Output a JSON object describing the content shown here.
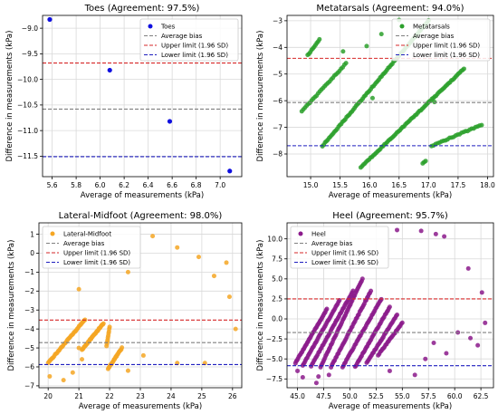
{
  "figure": {
    "xlabel": "Average of measurements (kPa)",
    "ylabel": "Difference in measurements (kPa)"
  },
  "legend_labels": {
    "bias": "Average bias",
    "upper": "Upper limit (1.96 SD)",
    "lower": "Lower limit (1.96 SD)"
  },
  "colors": {
    "bias": "#808080",
    "upper": "#d62728",
    "lower": "#1f1fbf",
    "grid": "#d9d9d9"
  },
  "chart_data": [
    {
      "type": "scatter",
      "title": "Toes (Agreement: 97.5%)",
      "series_name": "Toes",
      "color": "#1010e0",
      "xlim": [
        5.52,
        7.18
      ],
      "ylim": [
        -11.9,
        -8.75
      ],
      "xticks": [
        5.6,
        5.8,
        6.0,
        6.2,
        6.4,
        6.6,
        6.8,
        7.0
      ],
      "yticks": [
        -11.5,
        -11.0,
        -10.5,
        -10.0,
        -9.5,
        -9.0
      ],
      "xtick_labels": [
        "5.6",
        "5.8",
        "6.0",
        "6.2",
        "6.4",
        "6.6",
        "6.8",
        "7.0"
      ],
      "ytick_labels": [
        "−11.5",
        "−11.0",
        "−10.5",
        "−10.0",
        "−9.5",
        "−9.0"
      ],
      "bias": -10.58,
      "upper": -9.68,
      "lower": -11.51,
      "legend_pos": "top-right",
      "points": [
        [
          5.58,
          -8.83
        ],
        [
          6.08,
          -9.82
        ],
        [
          6.58,
          -10.82
        ],
        [
          7.08,
          -11.79
        ]
      ]
    },
    {
      "type": "scatter",
      "title": "Metatarsals (Agreement: 94.0%)",
      "series_name": "Metatarsals",
      "color": "#2ca02c",
      "xlim": [
        14.6,
        18.1
      ],
      "ylim": [
        -8.85,
        -2.8
      ],
      "xticks": [
        15.0,
        15.5,
        16.0,
        16.5,
        17.0,
        17.5,
        18.0
      ],
      "yticks": [
        -8,
        -7,
        -6,
        -5,
        -4,
        -3
      ],
      "xtick_labels": [
        "15.0",
        "15.5",
        "16.0",
        "16.5",
        "17.0",
        "17.5",
        "18.0"
      ],
      "ytick_labels": [
        "−8",
        "−7",
        "−6",
        "−5",
        "−4",
        "−3"
      ],
      "bias": -6.07,
      "upper": -4.41,
      "lower": -7.69,
      "legend_pos": "top-right",
      "clusters": [
        {
          "from": [
            14.95,
            -4.3
          ],
          "to": [
            15.15,
            -3.7
          ],
          "n": 10
        },
        {
          "from": [
            14.85,
            -6.4
          ],
          "to": [
            15.6,
            -4.6
          ],
          "n": 28
        },
        {
          "from": [
            15.2,
            -7.7
          ],
          "to": [
            17.0,
            -3.0
          ],
          "n": 80
        },
        {
          "from": [
            15.85,
            -8.5
          ],
          "to": [
            17.6,
            -4.8
          ],
          "n": 75
        },
        {
          "from": [
            17.05,
            -7.7
          ],
          "to": [
            17.9,
            -6.9
          ],
          "n": 26
        },
        {
          "from": [
            16.9,
            -8.35
          ],
          "to": [
            16.95,
            -8.25
          ],
          "n": 3
        }
      ],
      "extra_points": [
        [
          15.95,
          -3.95
        ],
        [
          16.2,
          -3.5
        ],
        [
          16.05,
          -5.9
        ],
        [
          16.5,
          -2.97
        ],
        [
          17.1,
          -6.05
        ],
        [
          15.55,
          -4.15
        ]
      ]
    },
    {
      "type": "scatter",
      "title": "Lateral-Midfoot (Agreement: 98.0%)",
      "series_name": "Lateral-Midfoot",
      "color": "#f5a623",
      "xlim": [
        19.7,
        26.3
      ],
      "ylim": [
        -7.1,
        1.6
      ],
      "xticks": [
        20,
        21,
        22,
        23,
        24,
        25,
        26
      ],
      "yticks": [
        -7,
        -6,
        -5,
        -4,
        -3,
        -2,
        -1,
        0,
        1
      ],
      "xtick_labels": [
        "20",
        "21",
        "22",
        "23",
        "24",
        "25",
        "26"
      ],
      "ytick_labels": [
        "−7",
        "−6",
        "−5",
        "−4",
        "−3",
        "−2",
        "−1",
        "0",
        "1"
      ],
      "bias": -4.72,
      "upper": -3.53,
      "lower": -5.88,
      "legend_pos": "top-left",
      "clusters": [
        {
          "from": [
            20.0,
            -5.8
          ],
          "to": [
            21.2,
            -3.5
          ],
          "n": 38
        },
        {
          "from": [
            21.1,
            -5.1
          ],
          "to": [
            21.8,
            -3.7
          ],
          "n": 34
        },
        {
          "from": [
            21.95,
            -6.1
          ],
          "to": [
            22.4,
            -5.0
          ],
          "n": 22
        },
        {
          "from": [
            21.9,
            -4.9
          ],
          "to": [
            22.0,
            -3.9
          ],
          "n": 10
        }
      ],
      "extra_points": [
        [
          20.05,
          -6.5
        ],
        [
          20.5,
          -6.7
        ],
        [
          20.8,
          -6.3
        ],
        [
          21.0,
          -5.0
        ],
        [
          21.0,
          -1.9
        ],
        [
          21.1,
          -5.6
        ],
        [
          22.6,
          -1.0
        ],
        [
          22.6,
          -6.2
        ],
        [
          23.4,
          0.9
        ],
        [
          23.1,
          -5.4
        ],
        [
          24.2,
          0.3
        ],
        [
          24.2,
          -5.8
        ],
        [
          24.9,
          -0.2
        ],
        [
          25.1,
          -5.8
        ],
        [
          25.4,
          -1.2
        ],
        [
          25.8,
          -0.5
        ],
        [
          25.9,
          -2.3
        ],
        [
          26.1,
          -4.0
        ]
      ]
    },
    {
      "type": "scatter",
      "title": "Heel (Agreement: 95.7%)",
      "series_name": "Heel",
      "color": "#8b1a8b",
      "xlim": [
        44.0,
        63.7
      ],
      "ylim": [
        -8.6,
        12.0
      ],
      "xticks": [
        45.0,
        47.5,
        50.0,
        52.5,
        55.0,
        57.5,
        60.0,
        62.5
      ],
      "yticks": [
        -7.5,
        -5.0,
        -2.5,
        0.0,
        2.5,
        5.0,
        7.5,
        10.0
      ],
      "xtick_labels": [
        "45.0",
        "47.5",
        "50.0",
        "52.5",
        "55.0",
        "57.5",
        "60.0",
        "62.5"
      ],
      "ytick_labels": [
        "−7.5",
        "−5.0",
        "−2.5",
        "0.0",
        "2.5",
        "5.0",
        "7.5",
        "10.0"
      ],
      "bias": -1.7,
      "upper": 2.5,
      "lower": -5.85,
      "legend_pos": "top-left",
      "clusters": [
        {
          "from": [
            44.8,
            -5.5
          ],
          "to": [
            47.8,
            1.2
          ],
          "n": 38
        },
        {
          "from": [
            45.5,
            -5.8
          ],
          "to": [
            49.0,
            2.3
          ],
          "n": 42
        },
        {
          "from": [
            46.3,
            -5.9
          ],
          "to": [
            50.3,
            3.5
          ],
          "n": 46
        },
        {
          "from": [
            47.2,
            -6.0
          ],
          "to": [
            51.2,
            5.0
          ],
          "n": 50
        },
        {
          "from": [
            48.2,
            -6.0
          ],
          "to": [
            52.0,
            3.5
          ],
          "n": 44
        },
        {
          "from": [
            49.3,
            -6.0
          ],
          "to": [
            53.0,
            2.5
          ],
          "n": 42
        },
        {
          "from": [
            50.5,
            -6.0
          ],
          "to": [
            53.8,
            1.5
          ],
          "n": 38
        },
        {
          "from": [
            51.6,
            -5.5
          ],
          "to": [
            54.5,
            0.5
          ],
          "n": 32
        },
        {
          "from": [
            52.7,
            -4.5
          ],
          "to": [
            55.0,
            -0.5
          ],
          "n": 24
        }
      ],
      "extra_points": [
        [
          45.0,
          -6.5
        ],
        [
          45.5,
          -7.3
        ],
        [
          46.8,
          -8.0
        ],
        [
          47.0,
          -7.2
        ],
        [
          48.0,
          -7.0
        ],
        [
          53.8,
          -6.5
        ],
        [
          54.5,
          11.1
        ],
        [
          56.2,
          -7.0
        ],
        [
          56.8,
          11.0
        ],
        [
          57.2,
          -5.0
        ],
        [
          58.0,
          -3.0
        ],
        [
          58.2,
          10.6
        ],
        [
          59.0,
          10.3
        ],
        [
          59.2,
          -4.3
        ],
        [
          60.3,
          -1.7
        ],
        [
          61.3,
          6.3
        ],
        [
          61.5,
          -2.4
        ],
        [
          62.2,
          -3.3
        ],
        [
          62.6,
          3.3
        ],
        [
          62.9,
          -0.5
        ]
      ]
    }
  ]
}
